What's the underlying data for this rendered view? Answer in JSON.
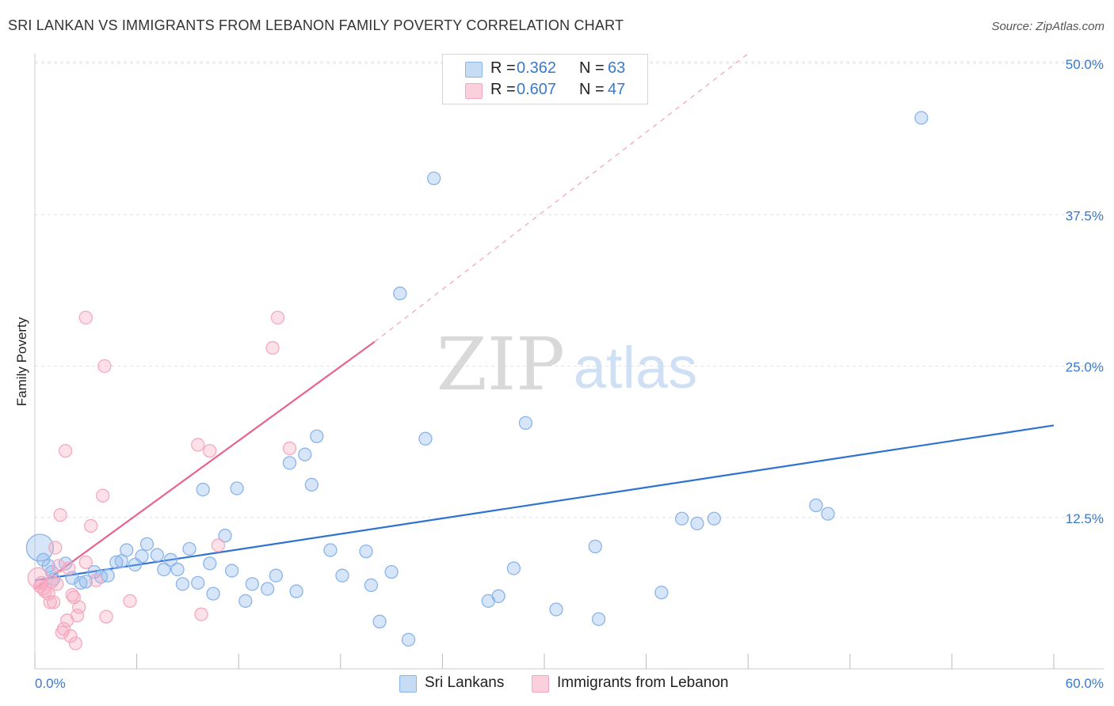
{
  "title": "SRI LANKAN VS IMMIGRANTS FROM LEBANON FAMILY POVERTY CORRELATION CHART",
  "source": "Source: ZipAtlas.com",
  "watermark": {
    "zip": "ZIP",
    "atlas": "atlas"
  },
  "legend": {
    "r_label": "R =",
    "n_label": "N =",
    "rows": [
      {
        "r": "0.362",
        "n": "63"
      },
      {
        "r": "0.607",
        "n": "47"
      }
    ]
  },
  "chart_data": {
    "type": "scatter",
    "title": "SRI LANKAN VS IMMIGRANTS FROM LEBANON FAMILY POVERTY CORRELATION CHART",
    "ylabel": "Family Poverty",
    "xlabel": "",
    "xlim": [
      0,
      60
    ],
    "ylim": [
      0,
      52
    ],
    "x_tick_labels": [
      {
        "value": 0,
        "label": "0.0%"
      },
      {
        "value": 60,
        "label": "60.0%"
      }
    ],
    "y_tick_labels": [
      {
        "value": 12.5,
        "label": "12.5%"
      },
      {
        "value": 25,
        "label": "25.0%"
      },
      {
        "value": 37.5,
        "label": "37.5%"
      },
      {
        "value": 50,
        "label": "50.0%"
      }
    ],
    "grid": true,
    "legend_position": "bottom",
    "series": [
      {
        "name": "Sri Lankans",
        "color": "#8ab4ea",
        "line_color": "#2f72d0",
        "trend": {
          "x0": 0,
          "y0": 7.3,
          "x1": 60,
          "y1": 20.1,
          "dash_to": null
        },
        "points": [
          [
            0.3,
            10.0
          ],
          [
            0.5,
            9.0
          ],
          [
            0.8,
            8.5
          ],
          [
            1.0,
            8.0
          ],
          [
            1.1,
            7.4
          ],
          [
            1.8,
            8.7
          ],
          [
            2.2,
            7.5
          ],
          [
            2.7,
            7.1
          ],
          [
            3.0,
            7.2
          ],
          [
            3.5,
            8.0
          ],
          [
            3.9,
            7.6
          ],
          [
            4.3,
            7.7
          ],
          [
            4.8,
            8.8
          ],
          [
            5.1,
            8.9
          ],
          [
            5.4,
            9.8
          ],
          [
            5.9,
            8.6
          ],
          [
            6.3,
            9.3
          ],
          [
            6.6,
            10.3
          ],
          [
            7.2,
            9.4
          ],
          [
            7.6,
            8.2
          ],
          [
            8.0,
            9.0
          ],
          [
            8.4,
            8.2
          ],
          [
            8.7,
            7.0
          ],
          [
            9.1,
            9.9
          ],
          [
            9.6,
            7.1
          ],
          [
            9.9,
            14.8
          ],
          [
            10.3,
            8.7
          ],
          [
            10.5,
            6.2
          ],
          [
            11.2,
            11.0
          ],
          [
            11.6,
            8.1
          ],
          [
            11.9,
            14.9
          ],
          [
            12.4,
            5.6
          ],
          [
            12.8,
            7.0
          ],
          [
            13.7,
            6.6
          ],
          [
            14.2,
            7.7
          ],
          [
            15.0,
            17.0
          ],
          [
            15.4,
            6.4
          ],
          [
            15.9,
            17.7
          ],
          [
            16.3,
            15.2
          ],
          [
            16.6,
            19.2
          ],
          [
            17.4,
            9.8
          ],
          [
            18.1,
            7.7
          ],
          [
            19.5,
            9.7
          ],
          [
            19.8,
            6.9
          ],
          [
            20.3,
            3.9
          ],
          [
            21.0,
            8.0
          ],
          [
            21.5,
            31.0
          ],
          [
            22.0,
            2.4
          ],
          [
            23.0,
            19.0
          ],
          [
            23.5,
            40.5
          ],
          [
            26.7,
            5.6
          ],
          [
            27.3,
            6.0
          ],
          [
            28.2,
            8.3
          ],
          [
            28.9,
            20.3
          ],
          [
            30.7,
            4.9
          ],
          [
            33.0,
            10.1
          ],
          [
            33.2,
            4.1
          ],
          [
            36.9,
            6.3
          ],
          [
            38.1,
            12.4
          ],
          [
            39.0,
            12.0
          ],
          [
            40.0,
            12.4
          ],
          [
            46.0,
            13.5
          ],
          [
            46.7,
            12.8
          ],
          [
            52.2,
            45.5
          ]
        ]
      },
      {
        "name": "Immigrants from Lebanon",
        "color": "#f5a8c0",
        "line_color": "#e8638e",
        "trend": {
          "x0": 0,
          "y0": 6.6,
          "x1": 20,
          "y1": 27.0,
          "dash_to": {
            "x": 42,
            "y": 50.8
          }
        },
        "points": [
          [
            0.2,
            7.5
          ],
          [
            0.3,
            6.8
          ],
          [
            0.4,
            7.1
          ],
          [
            0.5,
            6.6
          ],
          [
            0.6,
            6.4
          ],
          [
            0.8,
            6.2
          ],
          [
            0.9,
            5.5
          ],
          [
            1.0,
            7.2
          ],
          [
            1.1,
            5.5
          ],
          [
            1.2,
            10.0
          ],
          [
            1.3,
            7.0
          ],
          [
            1.4,
            8.5
          ],
          [
            1.5,
            12.7
          ],
          [
            1.6,
            3.0
          ],
          [
            1.7,
            3.3
          ],
          [
            1.8,
            18.0
          ],
          [
            1.9,
            4.0
          ],
          [
            2.0,
            8.3
          ],
          [
            2.1,
            2.7
          ],
          [
            2.2,
            6.1
          ],
          [
            2.3,
            5.9
          ],
          [
            2.4,
            2.1
          ],
          [
            2.5,
            4.4
          ],
          [
            2.6,
            5.1
          ],
          [
            3.0,
            8.8
          ],
          [
            3.0,
            29.0
          ],
          [
            3.3,
            11.8
          ],
          [
            3.6,
            7.3
          ],
          [
            4.0,
            14.3
          ],
          [
            4.1,
            25.0
          ],
          [
            4.2,
            4.3
          ],
          [
            5.6,
            5.6
          ],
          [
            9.8,
            4.5
          ],
          [
            9.6,
            18.5
          ],
          [
            10.3,
            18.0
          ],
          [
            10.8,
            10.2
          ],
          [
            14.0,
            26.5
          ],
          [
            14.3,
            29.0
          ],
          [
            15.0,
            18.2
          ]
        ]
      }
    ]
  }
}
